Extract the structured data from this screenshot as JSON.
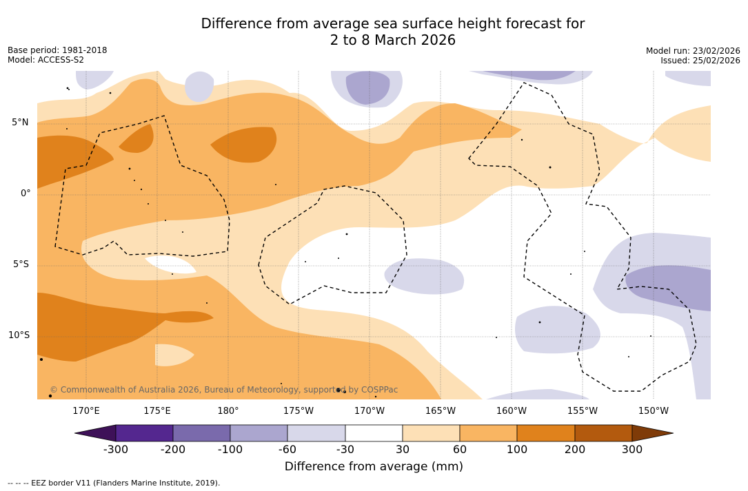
{
  "title_line1": "Difference from average sea surface height forecast for",
  "title_line2": "2 to 8 March 2026",
  "base_period": "Base period: 1981-2018",
  "model": "Model: ACCESS-S2",
  "model_run": "Model run: 23/02/2026",
  "issued": "Issued: 25/02/2026",
  "lat_labels": [
    "5°N",
    "0°",
    "5°S",
    "10°S"
  ],
  "lon_labels": [
    "170°E",
    "175°E",
    "180°",
    "175°W",
    "170°W",
    "165°W",
    "160°W",
    "155°W",
    "150°W"
  ],
  "copyright": "© Commonwealth of Australia 2026, Bureau of Meteorology, supported by COSPPac",
  "colorbar": {
    "ticks": [
      "-300",
      "-200",
      "-100",
      "-60",
      "-30",
      "30",
      "60",
      "100",
      "200",
      "300"
    ],
    "label": "Difference from average (mm)",
    "colors": [
      "#3e1158",
      "#54278f",
      "#7a6aac",
      "#aba6cf",
      "#d8d8ea",
      "#ffffff",
      "#fde0b6",
      "#f9b562",
      "#e0821c",
      "#b35a0e",
      "#7f3b08"
    ]
  },
  "footnote": "--  --  -- EEZ border V11 (Flanders Marine Institute, 2019)."
}
